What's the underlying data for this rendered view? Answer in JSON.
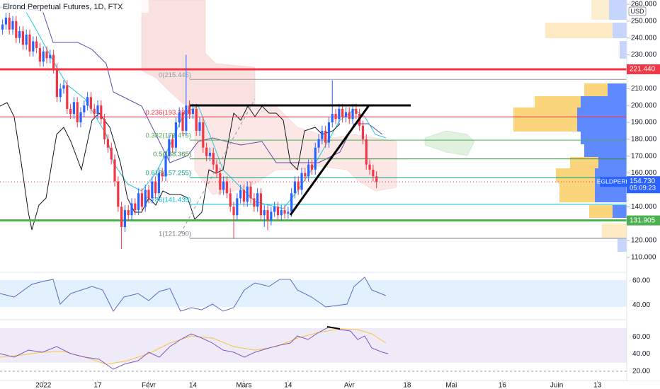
{
  "chart_data": {
    "type": "candlestick",
    "title": "Elrond Perpetual Futures, 1D, FTX",
    "currency": "USD",
    "up_color": "#2962ff",
    "down_color": "#f23645",
    "open": [
      245,
      248,
      252,
      245,
      250,
      240,
      244,
      236,
      242,
      232,
      238,
      234,
      226,
      232,
      228,
      230,
      222,
      205,
      210,
      212,
      198,
      195,
      202,
      190,
      196,
      200,
      205,
      198,
      195,
      200,
      192,
      180,
      175,
      168,
      155,
      140,
      128,
      138,
      135,
      142,
      138,
      148,
      140,
      150,
      145,
      155,
      148,
      160,
      158,
      170,
      180,
      175,
      190,
      196,
      185,
      200,
      195,
      198,
      185,
      190,
      175,
      170,
      172,
      165,
      160,
      150,
      155,
      148,
      140,
      135,
      145,
      150,
      143,
      152,
      145,
      140,
      148,
      135,
      138,
      132,
      137,
      140,
      135,
      138,
      136,
      137,
      148,
      155,
      150,
      160,
      158,
      165,
      162,
      175,
      180,
      185,
      178,
      190,
      195,
      192,
      198,
      193,
      196,
      192,
      198,
      195,
      188,
      180,
      165,
      162,
      158
    ],
    "high": [
      251,
      255,
      255,
      253,
      253,
      247,
      247,
      245,
      245,
      241,
      241,
      237,
      235,
      235,
      233,
      233,
      225,
      213,
      215,
      215,
      201,
      205,
      205,
      199,
      203,
      208,
      208,
      201,
      203,
      203,
      195,
      183,
      178,
      171,
      158,
      143,
      141,
      141,
      145,
      145,
      151,
      151,
      153,
      153,
      158,
      158,
      163,
      163,
      173,
      183,
      183,
      193,
      199,
      199,
      230,
      203,
      201,
      201,
      193,
      193,
      178,
      175,
      175,
      168,
      163,
      158,
      158,
      151,
      143,
      148,
      153,
      153,
      155,
      155,
      148,
      151,
      151,
      141,
      141,
      140,
      143,
      143,
      141,
      141,
      140,
      151,
      158,
      158,
      163,
      163,
      168,
      168,
      178,
      183,
      188,
      188,
      193,
      215,
      198,
      201,
      201,
      199,
      199,
      201,
      201,
      198,
      191,
      183,
      168,
      165,
      161
    ],
    "low": [
      242,
      245,
      242,
      242,
      237,
      237,
      233,
      233,
      229,
      229,
      231,
      223,
      223,
      225,
      225,
      219,
      202,
      202,
      207,
      195,
      192,
      192,
      187,
      187,
      193,
      197,
      195,
      192,
      192,
      189,
      177,
      172,
      165,
      152,
      137,
      115,
      125,
      132,
      132,
      135,
      135,
      137,
      137,
      142,
      142,
      145,
      145,
      155,
      155,
      167,
      172,
      172,
      187,
      182,
      182,
      192,
      192,
      182,
      182,
      172,
      167,
      167,
      162,
      157,
      147,
      147,
      145,
      137,
      121,
      132,
      142,
      140,
      140,
      142,
      137,
      137,
      132,
      128,
      126,
      129,
      134,
      132,
      132,
      133,
      133,
      134,
      145,
      147,
      147,
      155,
      155,
      159,
      159,
      172,
      177,
      175,
      175,
      187,
      189,
      189,
      190,
      190,
      189,
      189,
      192,
      185,
      177,
      162,
      159,
      155,
      151
    ],
    "close": [
      248,
      252,
      245,
      250,
      240,
      244,
      236,
      242,
      232,
      238,
      234,
      226,
      232,
      228,
      230,
      222,
      205,
      210,
      212,
      198,
      195,
      202,
      190,
      196,
      200,
      205,
      198,
      195,
      200,
      192,
      180,
      175,
      168,
      155,
      140,
      128,
      138,
      135,
      142,
      138,
      148,
      140,
      150,
      145,
      155,
      148,
      160,
      158,
      170,
      180,
      175,
      190,
      196,
      185,
      200,
      195,
      198,
      185,
      190,
      175,
      170,
      172,
      165,
      160,
      150,
      155,
      148,
      140,
      135,
      145,
      150,
      143,
      152,
      145,
      140,
      148,
      135,
      138,
      132,
      137,
      140,
      135,
      138,
      136,
      137,
      148,
      155,
      150,
      160,
      158,
      165,
      162,
      175,
      180,
      185,
      178,
      190,
      195,
      192,
      198,
      193,
      196,
      192,
      198,
      195,
      188,
      180,
      165,
      162,
      158,
      154.73
    ],
    "xlim": [
      -0.75,
      183.6
    ],
    "ylim": [
      102,
      262.5
    ],
    "yticks": [
      {
        "value": 260,
        "label": "260.000"
      },
      {
        "value": 250,
        "label": "250.000"
      },
      {
        "value": 240,
        "label": "240.000"
      },
      {
        "value": 230,
        "label": "230.000"
      },
      {
        "value": 210,
        "label": "210.000"
      },
      {
        "value": 200,
        "label": "200.000"
      },
      {
        "value": 190,
        "label": "190.000"
      },
      {
        "value": 180,
        "label": "180.000"
      },
      {
        "value": 170,
        "label": "170.000"
      },
      {
        "value": 160,
        "label": "160.000"
      },
      {
        "value": 140,
        "label": "140.000"
      },
      {
        "value": 120,
        "label": "120.000"
      },
      {
        "value": 110,
        "label": "110.000"
      }
    ],
    "xticks": [
      {
        "value": 12,
        "label": "2022"
      },
      {
        "value": 28,
        "label": "17"
      },
      {
        "value": 43,
        "label": "Févr"
      },
      {
        "value": 56,
        "label": "14"
      },
      {
        "value": 71,
        "label": "Mars"
      },
      {
        "value": 84,
        "label": "14"
      },
      {
        "value": 102,
        "label": "Avr"
      },
      {
        "value": 119,
        "label": "18"
      },
      {
        "value": 132,
        "label": "Mai"
      },
      {
        "value": 147,
        "label": "16"
      },
      {
        "value": 163,
        "label": "Juin"
      },
      {
        "value": 175,
        "label": "13"
      }
    ],
    "hlines": [
      {
        "value": 221.44,
        "label": "221.440",
        "color": "#f23645"
      },
      {
        "value": 131.905,
        "label": "131.905",
        "color": "#4caf50"
      }
    ],
    "fib_levels": [
      {
        "value": 215.445,
        "label": "0(215.445)",
        "color": "#9598a1"
      },
      {
        "value": 193.235,
        "label": "0.236(193.235)",
        "color": "#f23645"
      },
      {
        "value": 179.475,
        "label": "0.382(179.475)",
        "color": "#4caf50"
      },
      {
        "value": 168.365,
        "label": "0.5(168.365)",
        "color": "#388e3c"
      },
      {
        "value": 157.255,
        "label": "0.618(157.255)",
        "color": "#089981"
      },
      {
        "value": 141.435,
        "label": "0.786(141.435)",
        "color": "#00bcd4"
      },
      {
        "value": 121.29,
        "label": "1(121.290)",
        "color": "#787b86"
      }
    ],
    "last_price": {
      "value": 154.73,
      "label": "154.730",
      "symbol": "EGLDPERP",
      "countdown": "05:09:23"
    },
    "panes": [
      {
        "ylim": [
          34,
          64
        ],
        "yticks": [
          {
            "value": 60,
            "label": "60.00"
          },
          {
            "value": 40,
            "label": "40.00"
          }
        ]
      },
      {
        "ylim": [
          10,
          75
        ],
        "yticks": [
          {
            "value": 60,
            "label": "60.00"
          },
          {
            "value": 40,
            "label": "40.00"
          },
          {
            "value": 20,
            "label": "20.00"
          }
        ]
      }
    ]
  }
}
